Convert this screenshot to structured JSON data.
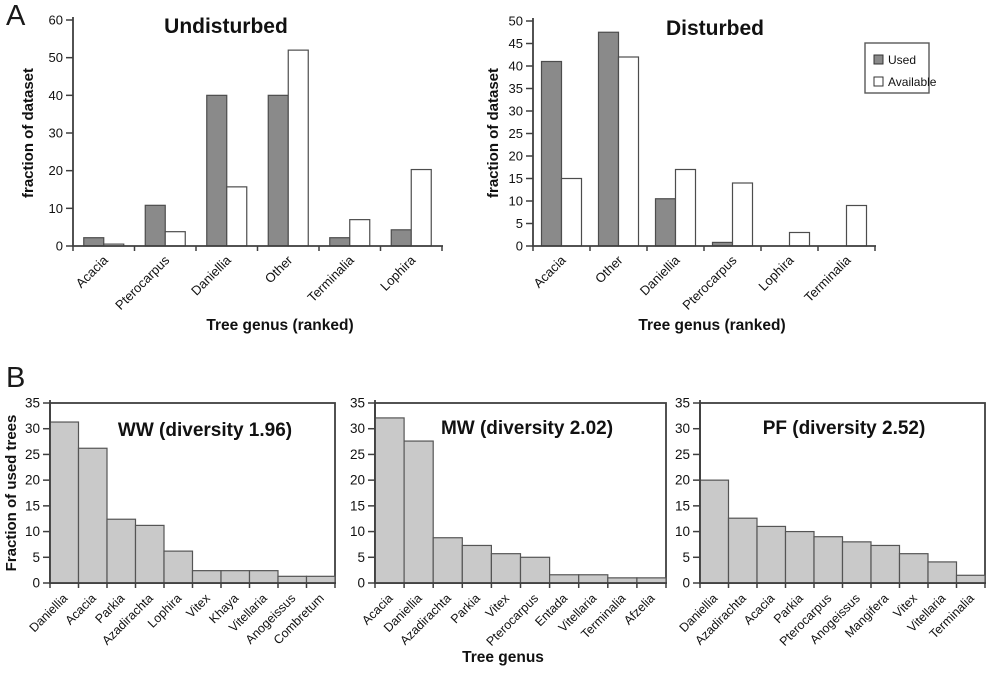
{
  "figure": {
    "panel_a_label": "A",
    "panel_b_label": "B"
  },
  "colors": {
    "used_fill": "#8A8A8A",
    "available_fill": "#FFFFFF",
    "bar_stroke": "#4D4D4D",
    "hist_fill": "#C9C9C9",
    "hist_stroke": "#555555",
    "axis": "#3F3F3F",
    "text": "#111111"
  },
  "chart_data": [
    {
      "id": "undisturbed",
      "type": "bar",
      "title": "Undisturbed",
      "ylabel": "fraction of dataset",
      "xlabel": "Tree genus (ranked)",
      "ylim": [
        0,
        60
      ],
      "ytick_step": 10,
      "grid": false,
      "categories": [
        "Acacia",
        "Pterocarpus",
        "Daniellia",
        "Other",
        "Terminalia",
        "Lophira"
      ],
      "series": [
        {
          "name": "Used",
          "values": [
            2.2,
            10.8,
            40,
            40,
            2.2,
            4.3
          ]
        },
        {
          "name": "Available",
          "values": [
            0.5,
            3.8,
            15.7,
            52,
            7,
            20.3
          ]
        }
      ]
    },
    {
      "id": "disturbed",
      "type": "bar",
      "title": "Disturbed",
      "ylabel": "fraction of dataset",
      "xlabel": "Tree genus (ranked)",
      "ylim": [
        0,
        50
      ],
      "ytick_step": 5,
      "grid": false,
      "legend_position": "right",
      "categories": [
        "Acacia",
        "Other",
        "Daniellia",
        "Pterocarpus",
        "Lophira",
        "Terminalia"
      ],
      "series": [
        {
          "name": "Used",
          "values": [
            41,
            47.5,
            10.5,
            0.8,
            0,
            0
          ]
        },
        {
          "name": "Available",
          "values": [
            15,
            42,
            17,
            14,
            3,
            9
          ]
        }
      ]
    },
    {
      "id": "ww",
      "type": "bar",
      "title": "WW (diversity 1.96)",
      "ylabel": "Fraction of used trees",
      "ylim": [
        0,
        35
      ],
      "ytick_step": 5,
      "grid": false,
      "categories": [
        "Daniellia",
        "Acacia",
        "Parkia",
        "Azadirachta",
        "Lophira",
        "Vitex",
        "Khaya",
        "Vitellaria",
        "Anogeissus",
        "Combretum"
      ],
      "values": [
        31.3,
        26.2,
        12.4,
        11.2,
        6.2,
        2.4,
        2.4,
        2.4,
        1.3,
        1.3
      ]
    },
    {
      "id": "mw",
      "type": "bar",
      "title": "MW (diversity 2.02)",
      "xlabel": "Tree genus",
      "ylim": [
        0,
        35
      ],
      "ytick_step": 5,
      "grid": false,
      "categories": [
        "Acacia",
        "Daniellia",
        "Azadirachta",
        "Parkia",
        "Vitex",
        "Pterocarpus",
        "Entada",
        "Vitellaria",
        "Terminalia",
        "Afzelia"
      ],
      "values": [
        32.1,
        27.6,
        8.8,
        7.3,
        5.7,
        5.0,
        1.6,
        1.6,
        1.0,
        1.0
      ]
    },
    {
      "id": "pf",
      "type": "bar",
      "title": "PF (diversity 2.52)",
      "ylim": [
        0,
        35
      ],
      "ytick_step": 5,
      "grid": false,
      "categories": [
        "Daniellia",
        "Azadirachta",
        "Acacia",
        "Parkia",
        "Pterocarpus",
        "Anogeissus",
        "Mangifera",
        "Vitex",
        "Vitellaria",
        "Terminalia"
      ],
      "values": [
        20,
        12.6,
        11,
        10,
        9,
        8,
        7.3,
        5.7,
        4.1,
        1.5
      ]
    }
  ]
}
